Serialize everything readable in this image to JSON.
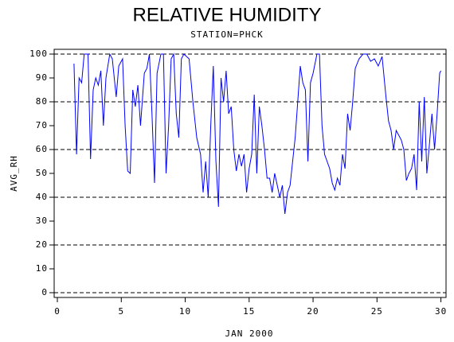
{
  "chart_data": {
    "type": "line",
    "title": "RELATIVE HUMIDITY",
    "subtitle": "STATION=PHCK",
    "x_label": "JAN 2000",
    "y_label": "AVG_RH",
    "xlim": [
      -0.25,
      30.4
    ],
    "ylim": [
      -2,
      102
    ],
    "xticks": [
      0,
      5,
      10,
      15,
      20,
      25,
      30
    ],
    "yticks": [
      0,
      10,
      20,
      30,
      40,
      50,
      60,
      70,
      80,
      90,
      100
    ],
    "ygrid": [
      0,
      20,
      40,
      60,
      80,
      100
    ],
    "color": "#0000ff",
    "x": [
      1.3,
      1.5,
      1.7,
      1.9,
      2.1,
      2.4,
      2.6,
      2.8,
      3.0,
      3.2,
      3.4,
      3.6,
      3.8,
      4.1,
      4.3,
      4.6,
      4.8,
      5.1,
      5.3,
      5.5,
      5.7,
      5.9,
      6.1,
      6.3,
      6.5,
      6.8,
      7.0,
      7.2,
      7.4,
      7.6,
      7.8,
      8.1,
      8.3,
      8.5,
      8.7,
      8.9,
      9.1,
      9.3,
      9.5,
      9.7,
      9.9,
      10.3,
      10.6,
      10.9,
      11.2,
      11.4,
      11.6,
      11.8,
      12.0,
      12.2,
      12.4,
      12.6,
      12.8,
      13.0,
      13.2,
      13.4,
      13.6,
      13.8,
      14.0,
      14.2,
      14.4,
      14.6,
      14.8,
      15.0,
      15.2,
      15.4,
      15.6,
      15.8,
      16.0,
      16.2,
      16.4,
      16.6,
      16.8,
      17.0,
      17.2,
      17.4,
      17.6,
      17.8,
      18.0,
      18.2,
      18.4,
      18.6,
      18.8,
      19.0,
      19.2,
      19.4,
      19.6,
      19.8,
      20.0,
      20.3,
      20.5,
      20.7,
      20.9,
      21.1,
      21.3,
      21.5,
      21.7,
      21.9,
      22.1,
      22.3,
      22.5,
      22.7,
      22.9,
      23.1,
      23.3,
      23.6,
      23.9,
      24.2,
      24.5,
      24.8,
      25.1,
      25.4,
      25.7,
      25.9,
      26.1,
      26.3,
      26.5,
      26.7,
      26.9,
      27.1,
      27.3,
      27.5,
      27.7,
      27.9,
      28.1,
      28.3,
      28.5,
      28.7,
      28.9,
      29.1,
      29.3,
      29.5,
      29.7,
      29.9,
      30.0
    ],
    "values": [
      96,
      58,
      90,
      88,
      100,
      100,
      56,
      85,
      90,
      87,
      93,
      70,
      90,
      100,
      98,
      82,
      95,
      98,
      70,
      51,
      50,
      85,
      78,
      87,
      70,
      92,
      94,
      100,
      75,
      46,
      92,
      100,
      100,
      50,
      70,
      98,
      100,
      75,
      65,
      98,
      100,
      98,
      80,
      65,
      58,
      42,
      55,
      40,
      70,
      95,
      55,
      36,
      90,
      80,
      93,
      75,
      78,
      60,
      51,
      58,
      53,
      58,
      42,
      52,
      58,
      83,
      50,
      78,
      70,
      60,
      48,
      48,
      42,
      50,
      45,
      40,
      45,
      33,
      42,
      45,
      55,
      65,
      80,
      95,
      88,
      85,
      55,
      88,
      92,
      100,
      100,
      70,
      58,
      55,
      52,
      46,
      43,
      48,
      45,
      58,
      52,
      75,
      68,
      80,
      94,
      98,
      100,
      100,
      97,
      98,
      95,
      99,
      82,
      72,
      68,
      60,
      68,
      66,
      64,
      60,
      47,
      50,
      52,
      58,
      43,
      80,
      55,
      82,
      50,
      62,
      75,
      60,
      75,
      92,
      93
    ]
  }
}
